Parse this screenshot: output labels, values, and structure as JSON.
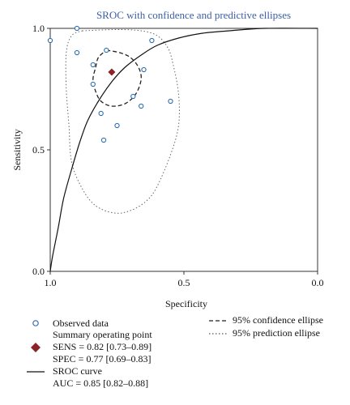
{
  "chart_data": {
    "type": "scatter",
    "title": "SROC with confidence and predictive ellipses",
    "xlabel": "Specificity",
    "ylabel": "Sensitivity",
    "x_reversed": true,
    "xlim": [
      1.0,
      0.0
    ],
    "ylim": [
      0.0,
      1.0
    ],
    "xticks": [
      "1.0",
      "0.5",
      "0.0"
    ],
    "yticks": [
      "0.0",
      "0.5",
      "1.0"
    ],
    "grid": false,
    "legend_position": "bottom",
    "colors": {
      "points": "#2f6fb0",
      "summary": "#8b2328",
      "curve": "#111111",
      "ellipse": "#222222",
      "prediction": "#666666",
      "title": "#3b5fa8"
    },
    "observed": [
      {
        "spec": 1.0,
        "sens": 0.95
      },
      {
        "spec": 0.9,
        "sens": 1.0
      },
      {
        "spec": 0.9,
        "sens": 0.9
      },
      {
        "spec": 0.84,
        "sens": 0.85
      },
      {
        "spec": 0.84,
        "sens": 0.77
      },
      {
        "spec": 0.81,
        "sens": 0.65
      },
      {
        "spec": 0.79,
        "sens": 0.91
      },
      {
        "spec": 0.8,
        "sens": 0.54
      },
      {
        "spec": 0.75,
        "sens": 0.6
      },
      {
        "spec": 0.69,
        "sens": 0.72
      },
      {
        "spec": 0.66,
        "sens": 0.68
      },
      {
        "spec": 0.65,
        "sens": 0.83
      },
      {
        "spec": 0.62,
        "sens": 0.95
      },
      {
        "spec": 0.55,
        "sens": 0.7
      }
    ],
    "summary_point": {
      "spec": 0.77,
      "sens": 0.82
    },
    "sroc_curve": [
      [
        1.0,
        0.0
      ],
      [
        0.99,
        0.07
      ],
      [
        0.97,
        0.18
      ],
      [
        0.95,
        0.3
      ],
      [
        0.92,
        0.42
      ],
      [
        0.89,
        0.53
      ],
      [
        0.86,
        0.62
      ],
      [
        0.82,
        0.7
      ],
      [
        0.77,
        0.78
      ],
      [
        0.72,
        0.84
      ],
      [
        0.66,
        0.89
      ],
      [
        0.6,
        0.93
      ],
      [
        0.52,
        0.96
      ],
      [
        0.43,
        0.98
      ],
      [
        0.33,
        0.99
      ],
      [
        0.2,
        1.0
      ],
      [
        0.0,
        1.0
      ]
    ],
    "confidence_ellipse": [
      [
        0.79,
        0.91
      ],
      [
        0.74,
        0.9
      ],
      [
        0.7,
        0.88
      ],
      [
        0.67,
        0.84
      ],
      [
        0.66,
        0.79
      ],
      [
        0.68,
        0.73
      ],
      [
        0.72,
        0.69
      ],
      [
        0.77,
        0.68
      ],
      [
        0.81,
        0.7
      ],
      [
        0.83,
        0.74
      ],
      [
        0.84,
        0.79
      ],
      [
        0.83,
        0.84
      ],
      [
        0.82,
        0.88
      ],
      [
        0.79,
        0.91
      ]
    ],
    "prediction_ellipse": [
      [
        0.88,
        0.99
      ],
      [
        0.75,
        0.995
      ],
      [
        0.66,
        0.99
      ],
      [
        0.6,
        0.97
      ],
      [
        0.56,
        0.92
      ],
      [
        0.54,
        0.85
      ],
      [
        0.52,
        0.73
      ],
      [
        0.52,
        0.6
      ],
      [
        0.55,
        0.48
      ],
      [
        0.6,
        0.35
      ],
      [
        0.64,
        0.29
      ],
      [
        0.7,
        0.25
      ],
      [
        0.76,
        0.24
      ],
      [
        0.83,
        0.27
      ],
      [
        0.88,
        0.34
      ],
      [
        0.92,
        0.45
      ],
      [
        0.93,
        0.6
      ],
      [
        0.94,
        0.75
      ],
      [
        0.94,
        0.9
      ],
      [
        0.92,
        0.97
      ],
      [
        0.88,
        0.99
      ]
    ]
  },
  "legend": {
    "observed": "Observed data",
    "summary_title": "Summary operating point",
    "sens": "SENS = 0.82 [0.73–0.89]",
    "spec": "SPEC = 0.77 [0.69–0.83]",
    "curve": "SROC curve",
    "auc": "AUC = 0.85 [0.82–0.88]",
    "confidence": "95% confidence ellipse",
    "prediction": "95% prediction ellipse"
  }
}
